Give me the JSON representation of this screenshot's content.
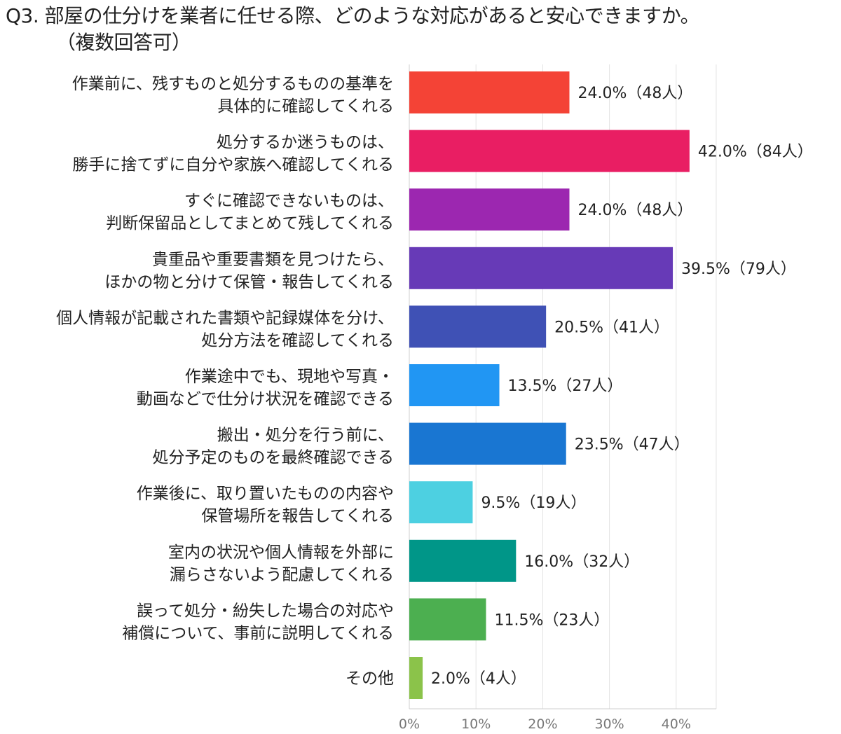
{
  "title": {
    "line1": "Q3. 部屋の仕分けを業者に任せる際、どのような対応があると安心できますか。",
    "line2": "（複数回答可）"
  },
  "chart_data": {
    "type": "bar",
    "orientation": "horizontal",
    "categories": [
      [
        "作業前に、残すものと処分するものの基準を",
        "具体的に確認してくれる"
      ],
      [
        "処分するか迷うものは、",
        "勝手に捨てずに自分や家族へ確認してくれる"
      ],
      [
        "すぐに確認できないものは、",
        "判断保留品としてまとめて残してくれる"
      ],
      [
        "貴重品や重要書類を見つけたら、",
        "ほかの物と分けて保管・報告してくれる"
      ],
      [
        "個人情報が記載された書類や記録媒体を分け、",
        "処分方法を確認してくれる"
      ],
      [
        "作業途中でも、現地や写真・",
        "動画などで仕分け状況を確認できる"
      ],
      [
        "搬出・処分を行う前に、",
        "処分予定のものを最終確認できる"
      ],
      [
        "作業後に、取り置いたものの内容や",
        "保管場所を報告してくれる"
      ],
      [
        "室内の状況や個人情報を外部に",
        "漏らさないよう配慮してくれる"
      ],
      [
        "誤って処分・紛失した場合の対応や",
        "補償について、事前に説明してくれる"
      ],
      [
        "その他"
      ]
    ],
    "values": [
      24.0,
      42.0,
      24.0,
      39.5,
      20.5,
      13.5,
      23.5,
      9.5,
      16.0,
      11.5,
      2.0
    ],
    "value_labels": [
      "24.0%（48人）",
      "42.0%（84人）",
      "24.0%（48人）",
      "39.5%（79人）",
      "20.5%（41人）",
      "13.5%（27人）",
      "23.5%（47人）",
      "9.5%（19人）",
      "16.0%（32人）",
      "11.5%（23人）",
      "2.0%（4人）"
    ],
    "colors": [
      "#f44336",
      "#e91e63",
      "#9c27b0",
      "#673ab7",
      "#3f51b5",
      "#2196f3",
      "#1976d2",
      "#4dd0e1",
      "#009688",
      "#4caf50",
      "#8bc34a"
    ],
    "xlim": [
      0,
      46
    ],
    "xticks": [
      0,
      10,
      20,
      30,
      40
    ],
    "tick_labels": [
      "0%",
      "10%",
      "20%",
      "30%",
      "40%"
    ],
    "grid": true,
    "legend": "none"
  }
}
